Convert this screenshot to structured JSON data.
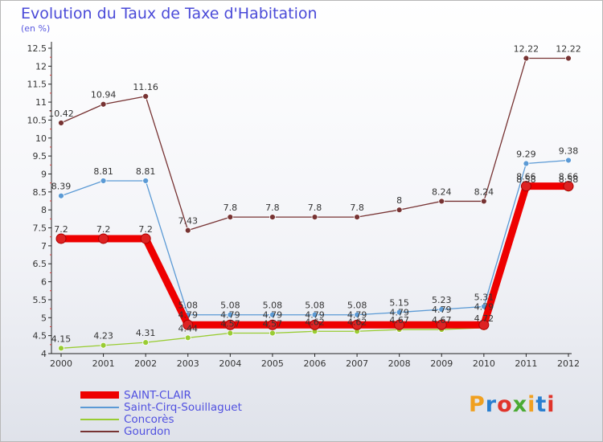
{
  "title": "Evolution du Taux de Taxe d'Habitation",
  "unit_label": "(en %)",
  "logo_text": "Proxiti",
  "chart_data": {
    "type": "line",
    "title": "Evolution du Taux de Taxe d'Habitation",
    "subtitle": "(en %)",
    "x": [
      "2000",
      "2001",
      "2002",
      "2003",
      "2004",
      "2005",
      "2006",
      "2007",
      "2008",
      "2009",
      "2010",
      "2011",
      "2012"
    ],
    "ylim": [
      4,
      12.5
    ],
    "yticks": [
      "4",
      "4.5",
      "5",
      "5.5",
      "6",
      "6.5",
      "7",
      "7.5",
      "8",
      "8.5",
      "9",
      "9.5",
      "10",
      "10.5",
      "11",
      "11.5",
      "12",
      "12.5"
    ],
    "grid": false,
    "legend_position": "bottom-left",
    "series": [
      {
        "name": "SAINT-CLAIR",
        "color": "#ee0000",
        "values": [
          7.2,
          7.2,
          7.2,
          4.8,
          4.8,
          4.8,
          4.8,
          4.8,
          4.8,
          4.8,
          4.8,
          8.66,
          8.66
        ],
        "labels": [
          "7.2",
          "7.2",
          "7.2",
          "",
          "",
          "",
          "",
          "",
          "",
          "",
          "",
          "8.66",
          "8.66"
        ]
      },
      {
        "name": "Saint-Cirq-Souillaguet",
        "color": "#5b9ad5",
        "values": [
          8.39,
          8.81,
          8.81,
          5.08,
          5.08,
          5.08,
          5.08,
          5.08,
          5.15,
          5.23,
          5.31,
          9.29,
          9.38
        ],
        "labels": [
          "8.39",
          "8.81",
          "8.81",
          "5.08",
          "5.08",
          "5.08",
          "5.08",
          "5.08",
          "5.15",
          "5.23",
          "5.31",
          "9.29",
          "9.38"
        ]
      },
      {
        "name": "Concorès",
        "color": "#99cc33",
        "values": [
          4.15,
          4.23,
          4.31,
          4.44,
          4.57,
          4.57,
          4.62,
          4.62,
          4.67,
          4.67,
          4.72,
          8.58,
          8.58
        ],
        "labels": [
          "4.15",
          "4.23",
          "4.31",
          "4.44",
          "4.57",
          "4.57",
          "4.62",
          "4.62",
          "4.67",
          "4.67",
          "4.72",
          "8.58",
          "8.58"
        ]
      },
      {
        "name": "Gourdon",
        "color": "#773333",
        "values": [
          10.42,
          10.94,
          11.16,
          7.43,
          7.8,
          7.8,
          7.8,
          7.8,
          8,
          8.24,
          8.24,
          12.22,
          12.22
        ],
        "labels": [
          "10.42",
          "10.94",
          "11.16",
          "7.43",
          "7.8",
          "7.8",
          "7.8",
          "7.8",
          "8",
          "8.24",
          "8.24",
          "12.22",
          "12.22"
        ]
      }
    ],
    "extra_labels": [
      {
        "series": "Saint-Cirq-Souillaguet",
        "index": 3,
        "text": "4.79"
      },
      {
        "series": "Saint-Cirq-Souillaguet",
        "index": 4,
        "text": "4.79"
      },
      {
        "series": "Saint-Cirq-Souillaguet",
        "index": 5,
        "text": "4.79"
      },
      {
        "series": "Saint-Cirq-Souillaguet",
        "index": 6,
        "text": "4.79"
      },
      {
        "series": "Saint-Cirq-Souillaguet",
        "index": 7,
        "text": "4.79"
      },
      {
        "series": "Saint-Cirq-Souillaguet",
        "index": 8,
        "text": "4.79"
      },
      {
        "series": "Saint-Cirq-Souillaguet",
        "index": 9,
        "text": "4.79"
      },
      {
        "series": "Saint-Cirq-Souillaguet",
        "index": 10,
        "text": "4.79"
      }
    ]
  }
}
